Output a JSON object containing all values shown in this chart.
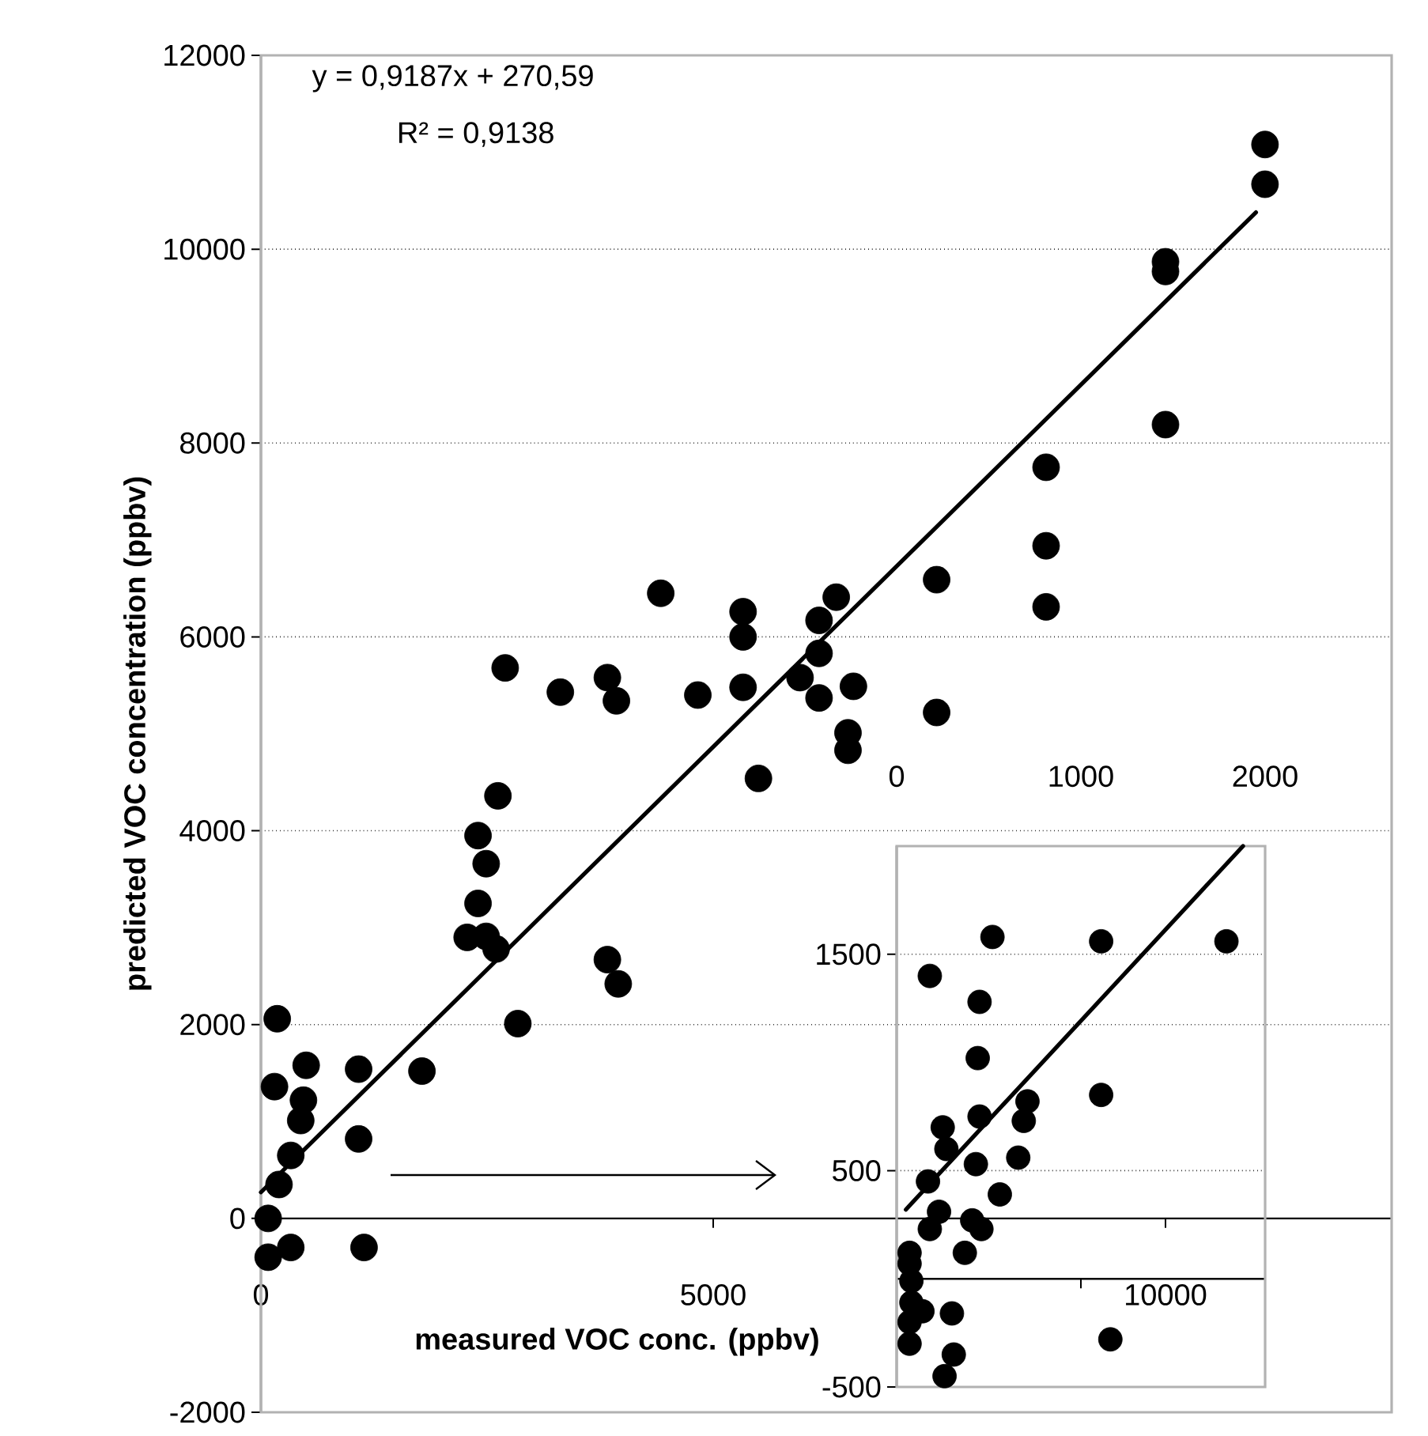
{
  "chart_data": [
    {
      "type": "scatter",
      "xlabel": "measured VOC conc. (ppbv)",
      "ylabel": "predicted VOC concentration (ppbv)",
      "annotations": [
        "y = 0,9187x  + 270,59",
        "R² = 0,9138"
      ],
      "xlim": [
        0,
        12500
      ],
      "ylim": [
        -2000,
        12000
      ],
      "xticks": [
        0,
        5000,
        10000
      ],
      "yticks": [
        -2000,
        0,
        2000,
        4000,
        6000,
        8000,
        10000,
        12000
      ],
      "grid": "y",
      "series": [
        {
          "marker": "circle",
          "color": "#000000",
          "x": [
            11100,
            11100,
            10000,
            10000,
            10000,
            8680,
            8680,
            8680,
            7470,
            7470,
            6360,
            6170,
            6170,
            5960,
            6170,
            6550,
            6490,
            6490,
            5330,
            5330,
            5330,
            4420,
            2700,
            3310,
            3830,
            3930,
            4830,
            5500,
            2620,
            2400,
            2490,
            2400,
            2280,
            2490,
            2600,
            3830,
            3950,
            2840,
            180,
            500,
            1080,
            1780,
            150,
            470,
            440,
            1080,
            1140,
            80,
            80,
            200,
            330,
            330
          ],
          "values": [
            11080,
            10670,
            9870,
            9770,
            8190,
            7750,
            6940,
            6310,
            6590,
            5220,
            6410,
            6170,
            5830,
            5580,
            5370,
            5490,
            5010,
            4830,
            6260,
            6000,
            5480,
            6450,
            5680,
            5430,
            5580,
            5340,
            5400,
            4540,
            4360,
            3950,
            3660,
            3250,
            2900,
            2910,
            2780,
            2670,
            2420,
            2010,
            2060,
            1580,
            1540,
            1520,
            1360,
            1220,
            1010,
            820,
            -300,
            -400,
            0,
            350,
            -300,
            650
          ]
        },
        {
          "type": "line",
          "marker": "none",
          "color": "#000000",
          "x": [
            0,
            11000
          ],
          "values": [
            270,
            10380
          ]
        }
      ]
    },
    {
      "type": "scatter",
      "xlim": [
        0,
        2000
      ],
      "ylim": [
        -500,
        2000
      ],
      "xticks": [
        0,
        1000,
        2000
      ],
      "yticks": [
        -500,
        500,
        1500
      ],
      "grid": "y",
      "series": [
        {
          "marker": "circle",
          "color": "#000000",
          "x": [
            520,
            1110,
            1790,
            180,
            450,
            440,
            1110,
            710,
            450,
            690,
            250,
            660,
            270,
            430,
            170,
            560,
            230,
            410,
            180,
            460,
            370,
            70,
            80,
            80,
            140,
            300,
            70,
            310,
            260,
            1160,
            70,
            70
          ],
          "values": [
            1580,
            1560,
            1560,
            1400,
            1280,
            1020,
            850,
            820,
            750,
            730,
            700,
            560,
            600,
            530,
            450,
            390,
            310,
            270,
            230,
            230,
            120,
            120,
            -10,
            -110,
            -150,
            -160,
            -300,
            -350,
            -450,
            -280,
            70,
            -200
          ]
        },
        {
          "type": "line",
          "marker": "none",
          "color": "#000000",
          "x": [
            50,
            1880
          ],
          "values": [
            320,
            2000
          ]
        }
      ]
    }
  ]
}
